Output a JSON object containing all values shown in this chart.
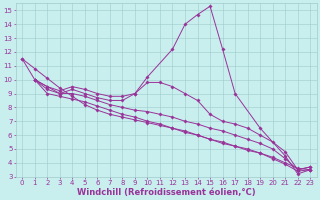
{
  "xlabel": "Windchill (Refroidissement éolien,°C)",
  "xlim": [
    -0.5,
    23.5
  ],
  "ylim": [
    3,
    15.5
  ],
  "xticks": [
    0,
    1,
    2,
    3,
    4,
    5,
    6,
    7,
    8,
    9,
    10,
    11,
    12,
    13,
    14,
    15,
    16,
    17,
    18,
    19,
    20,
    21,
    22,
    23
  ],
  "yticks": [
    3,
    4,
    5,
    6,
    7,
    8,
    9,
    10,
    11,
    12,
    13,
    14,
    15
  ],
  "background_color": "#c8eeee",
  "grid_color": "#a0cccc",
  "line_color": "#993399",
  "font_size_label": 6,
  "font_size_tick": 5,
  "marker_size": 1.8,
  "line_width": 0.7,
  "series": [
    {
      "x": [
        0,
        1,
        2,
        3,
        4,
        5,
        6,
        7,
        8,
        9,
        10,
        12,
        13,
        14,
        15,
        16,
        17,
        19,
        21,
        22,
        23
      ],
      "y": [
        11.5,
        10.0,
        9.5,
        9.0,
        9.3,
        9.0,
        8.7,
        8.5,
        8.5,
        9.0,
        10.2,
        12.2,
        14.0,
        14.7,
        15.3,
        12.2,
        9.0,
        6.5,
        4.5,
        3.2,
        3.5
      ]
    },
    {
      "x": [
        1,
        2,
        3,
        4,
        5,
        6,
        7,
        8,
        9,
        10,
        11,
        12,
        13,
        14,
        15,
        16,
        17,
        18,
        19,
        20,
        21,
        22,
        23
      ],
      "y": [
        10.0,
        9.5,
        9.2,
        9.5,
        9.3,
        9.0,
        8.8,
        8.8,
        9.0,
        9.8,
        9.8,
        9.5,
        9.0,
        8.5,
        7.5,
        7.0,
        6.8,
        6.5,
        6.0,
        5.5,
        4.8,
        3.5,
        3.7
      ]
    },
    {
      "x": [
        1,
        2,
        3,
        4,
        5,
        6,
        7,
        8,
        9,
        10,
        11,
        12,
        13,
        14,
        15,
        16,
        17,
        18,
        19,
        20,
        21,
        22,
        23
      ],
      "y": [
        10.0,
        9.3,
        9.0,
        9.0,
        8.8,
        8.5,
        8.2,
        8.0,
        7.8,
        7.7,
        7.5,
        7.3,
        7.0,
        6.8,
        6.5,
        6.3,
        6.0,
        5.7,
        5.4,
        5.0,
        4.3,
        3.5,
        3.7
      ]
    },
    {
      "x": [
        1,
        2,
        3,
        4,
        5,
        6,
        7,
        8,
        9,
        10,
        11,
        12,
        13,
        14,
        15,
        16,
        17,
        18,
        19,
        20,
        21,
        22,
        23
      ],
      "y": [
        10.0,
        9.0,
        8.8,
        8.6,
        8.4,
        8.1,
        7.8,
        7.5,
        7.3,
        7.0,
        6.8,
        6.5,
        6.2,
        6.0,
        5.7,
        5.4,
        5.2,
        4.9,
        4.7,
        4.3,
        3.9,
        3.4,
        3.5
      ]
    },
    {
      "x": [
        0,
        1,
        2,
        3,
        4,
        5,
        6,
        7,
        8,
        9,
        10,
        11,
        12,
        13,
        14,
        15,
        16,
        17,
        18,
        19,
        20,
        21,
        22,
        23
      ],
      "y": [
        11.5,
        10.8,
        10.1,
        9.4,
        8.8,
        8.2,
        7.8,
        7.5,
        7.3,
        7.1,
        6.9,
        6.7,
        6.5,
        6.3,
        6.0,
        5.7,
        5.5,
        5.2,
        5.0,
        4.7,
        4.4,
        4.0,
        3.6,
        3.5
      ]
    }
  ]
}
